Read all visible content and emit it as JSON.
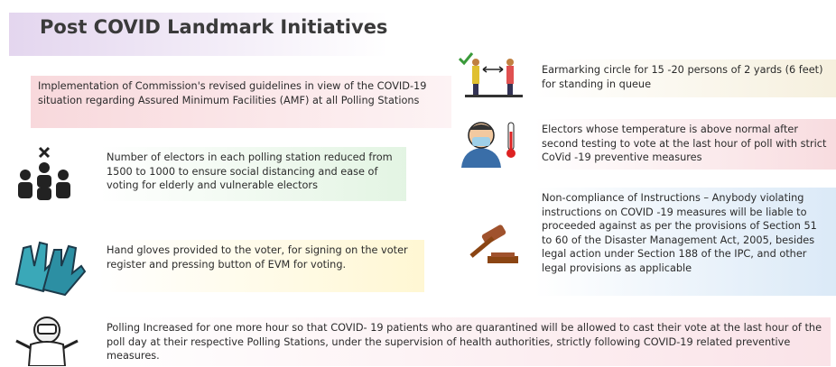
{
  "header": {
    "title": "Post COVID Landmark Initiatives"
  },
  "items": [
    {
      "text": "Implementation of Commission's revised guidelines in view of the COVID-19 situation regarding Assured Minimum Facilities (AMF) at all Polling Stations"
    },
    {
      "text": "Number of electors in each polling station reduced from 1500 to 1000 to ensure social distancing and ease of voting for elderly and vulnerable electors"
    },
    {
      "text": "Hand gloves provided to the voter, for signing on the voter register and pressing button of EVM for voting."
    },
    {
      "text": "Polling Increased for one more hour so that COVID-   19 patients who are quarantined will be allowed to cast their vote at the last hour of the poll day at their respective Polling Stations, under the supervision of health authorities, strictly following COVID-19 related preventive measures."
    },
    {
      "text": "Earmarking circle for 15  -20 persons of 2 yards (6 feet) for standing in queue"
    },
    {
      "text": "Electors whose temperature is above normal after second testing to vote at the last hour of poll with strict CoVid   -19 preventive measures"
    },
    {
      "text": "Non-compliance of Instructions  – Anybody violating instructions on COVID -19 measures will be liable to proceeded against as per the provisions of Section 51 to 60 of the Disaster Management Act, 2005, besides legal action under Section 188 of the IPC, and other legal provisions as applicable"
    }
  ]
}
